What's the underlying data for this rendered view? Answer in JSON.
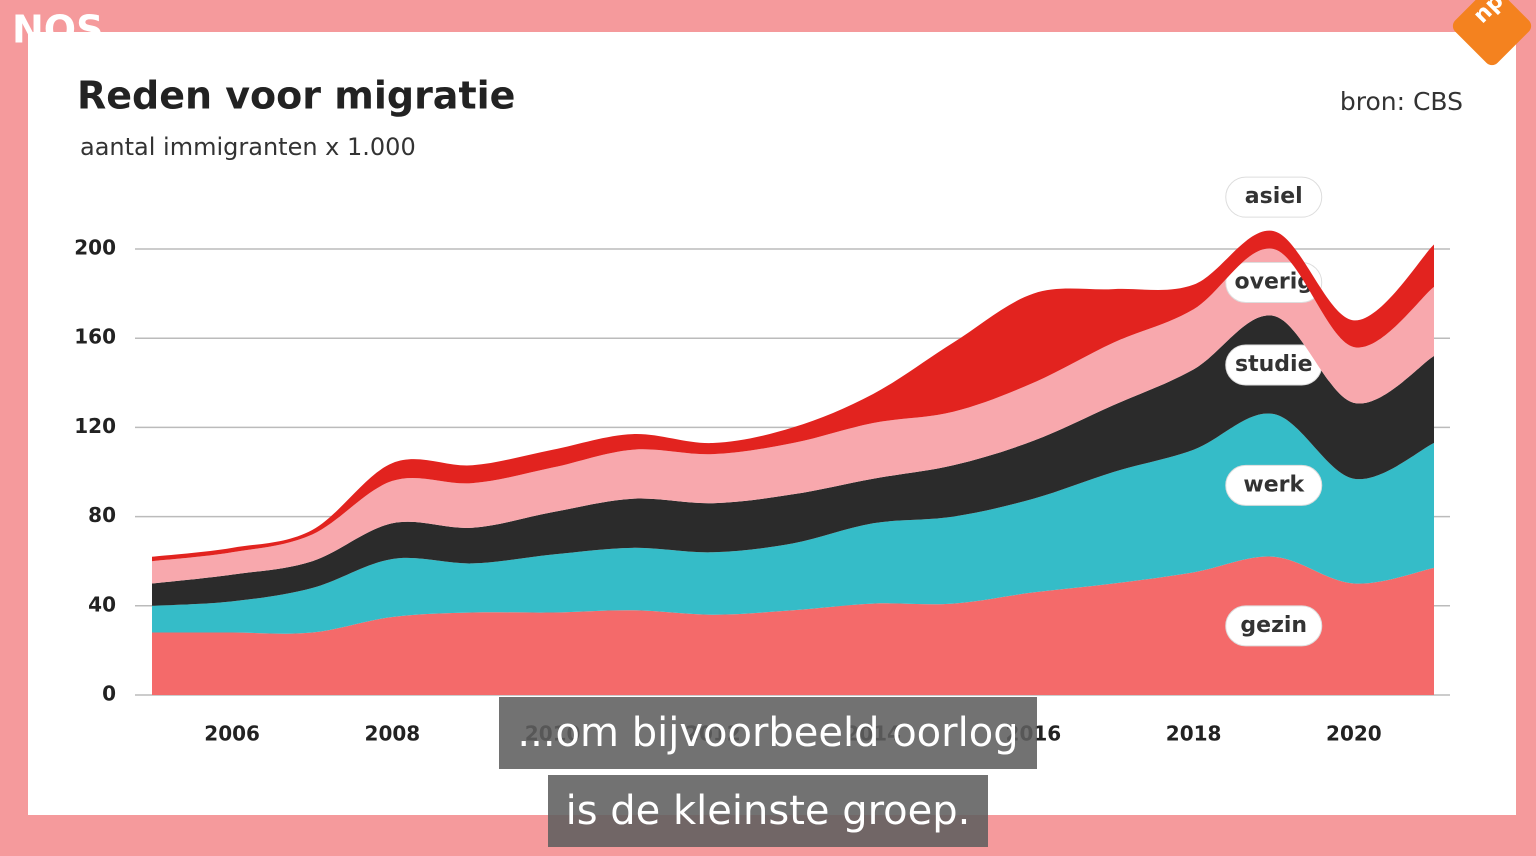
{
  "chart_data": {
    "type": "stacked-area",
    "title": "Reden voor migratie",
    "subtitle": "aantal immigranten x 1.000",
    "source": "bron: CBS",
    "x": [
      2005,
      2006,
      2007,
      2008,
      2009,
      2010,
      2011,
      2012,
      2013,
      2014,
      2015,
      2016,
      2017,
      2018,
      2019,
      2020,
      2021
    ],
    "xlim": [
      2005,
      2021
    ],
    "xticks": [
      2006,
      2008,
      2010,
      2012,
      2014,
      2016,
      2018,
      2020
    ],
    "ylim": [
      0,
      200
    ],
    "yticks": [
      0,
      40,
      80,
      120,
      160,
      200
    ],
    "grid": true,
    "series": [
      {
        "name": "gezin",
        "color": "#f46a6a",
        "values": [
          28,
          28,
          28,
          35,
          37,
          37,
          38,
          36,
          38,
          41,
          41,
          46,
          50,
          55,
          62,
          50,
          57
        ]
      },
      {
        "name": "werk",
        "color": "#35bcc8",
        "values": [
          12,
          14,
          20,
          26,
          22,
          26,
          28,
          28,
          30,
          36,
          39,
          42,
          50,
          55,
          64,
          47,
          56
        ]
      },
      {
        "name": "studie",
        "color": "#2b2b2b",
        "values": [
          10,
          12,
          12,
          16,
          16,
          19,
          22,
          22,
          22,
          20,
          23,
          26,
          30,
          36,
          44,
          34,
          39
        ]
      },
      {
        "name": "overig",
        "color": "#f8a8ad",
        "values": [
          10,
          10,
          12,
          19,
          20,
          20,
          22,
          22,
          23,
          25,
          24,
          26,
          28,
          27,
          30,
          25,
          31
        ]
      },
      {
        "name": "asiel",
        "color": "#e2231f",
        "values": [
          2,
          2,
          2,
          8,
          8,
          8,
          7,
          5,
          7,
          13,
          31,
          40,
          24,
          11,
          8,
          12,
          19
        ]
      }
    ]
  },
  "broadcaster": "NOS",
  "channel": "npo",
  "subtitles": [
    "...om bijvoorbeeld oorlog",
    "is de kleinste groep."
  ]
}
